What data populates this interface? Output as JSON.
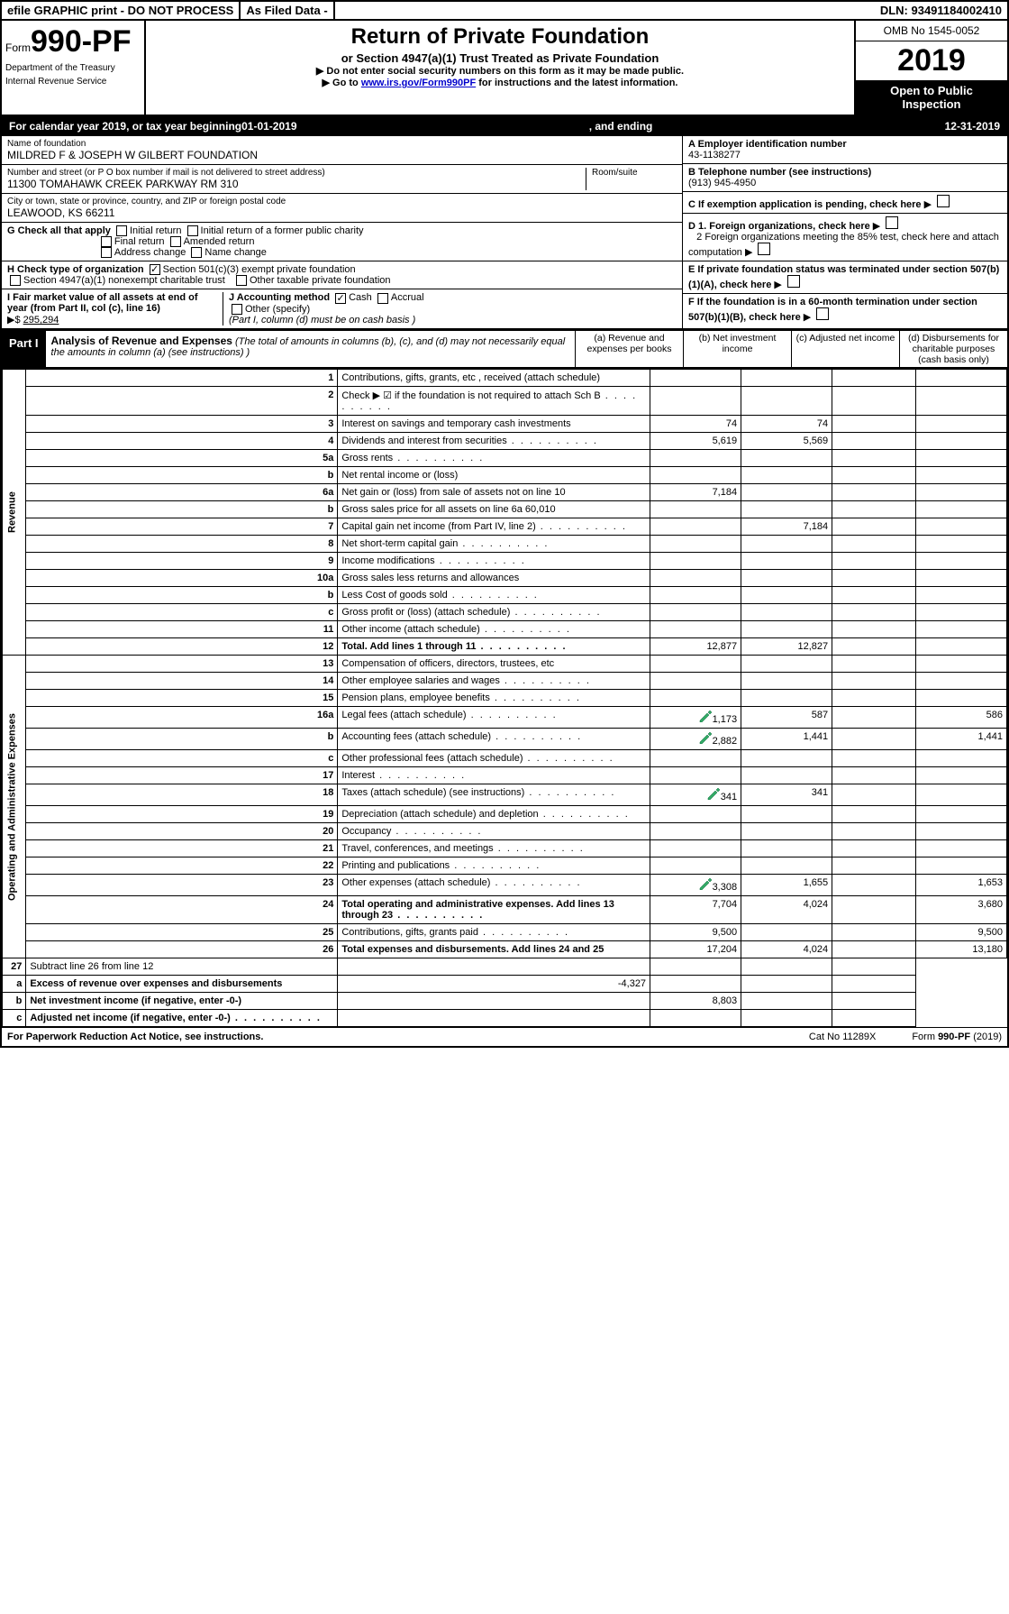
{
  "topbar": {
    "efile": "efile GRAPHIC print - DO NOT PROCESS",
    "asfiled": "As Filed Data -",
    "dln": "DLN: 93491184002410"
  },
  "header": {
    "form_prefix": "Form",
    "form_number": "990-PF",
    "dept1": "Department of the Treasury",
    "dept2": "Internal Revenue Service",
    "title": "Return of Private Foundation",
    "subtitle": "or Section 4947(a)(1) Trust Treated as Private Foundation",
    "note1": "▶ Do not enter social security numbers on this form as it may be made public.",
    "note2_pre": "▶ Go to ",
    "note2_link": "www.irs.gov/Form990PF",
    "note2_post": " for instructions and the latest information.",
    "omb": "OMB No 1545-0052",
    "year": "2019",
    "open1": "Open to Public",
    "open2": "Inspection"
  },
  "cal": {
    "pre": "For calendar year 2019, or tax year beginning ",
    "begin": "01-01-2019",
    "mid": ", and ending ",
    "end": "12-31-2019"
  },
  "ident": {
    "name_label": "Name of foundation",
    "name": "MILDRED F & JOSEPH W GILBERT FOUNDATION",
    "street_label": "Number and street (or P O  box number if mail is not delivered to street address)",
    "room_label": "Room/suite",
    "street": "11300 TOMAHAWK CREEK PARKWAY RM 310",
    "city_label": "City or town, state or province, country, and ZIP or foreign postal code",
    "city": "LEAWOOD, KS  66211",
    "ein_label": "A Employer identification number",
    "ein": "43-1138277",
    "phone_label": "B Telephone number (see instructions)",
    "phone": "(913) 945-4950",
    "c_label": "C If exemption application is pending, check here",
    "d1": "D 1. Foreign organizations, check here",
    "d2": "2 Foreign organizations meeting the 85% test, check here and attach computation",
    "e": "E  If private foundation status was terminated under section 507(b)(1)(A), check here",
    "f": "F  If the foundation is in a 60-month termination under section 507(b)(1)(B), check here"
  },
  "g": {
    "label": "G Check all that apply",
    "opts": [
      "Initial return",
      "Initial return of a former public charity",
      "Final return",
      "Amended return",
      "Address change",
      "Name change"
    ]
  },
  "h": {
    "label": "H Check type of organization",
    "opt1": "Section 501(c)(3) exempt private foundation",
    "opt2": "Section 4947(a)(1) nonexempt charitable trust",
    "opt3": "Other taxable private foundation"
  },
  "i": {
    "label": "I Fair market value of all assets at end of year (from Part II, col  (c), line 16)",
    "arrow": "▶$",
    "value": "295,294"
  },
  "j": {
    "label": "J Accounting method",
    "cash": "Cash",
    "accrual": "Accrual",
    "other": "Other (specify)",
    "note": "(Part I, column (d) must be on cash basis )"
  },
  "part1": {
    "label": "Part I",
    "title": "Analysis of Revenue and Expenses",
    "desc": "(The total of amounts in columns (b), (c), and (d) may not necessarily equal the amounts in column (a) (see instructions) )",
    "col_a": "(a) Revenue and expenses per books",
    "col_b": "(b) Net investment income",
    "col_c": "(c) Adjusted net income",
    "col_d": "(d) Disbursements for charitable purposes (cash basis only)"
  },
  "sections": {
    "revenue": "Revenue",
    "expenses": "Operating and Administrative Expenses"
  },
  "rows": [
    {
      "n": "1",
      "d": "Contributions, gifts, grants, etc , received (attach schedule)",
      "a": "",
      "b": "",
      "c": "",
      "dd": ""
    },
    {
      "n": "2",
      "d": "Check ▶ ☑ if the foundation is not required to attach Sch B",
      "a": "",
      "b": "",
      "c": "",
      "dd": "",
      "dots": true
    },
    {
      "n": "3",
      "d": "Interest on savings and temporary cash investments",
      "a": "74",
      "b": "74",
      "c": "",
      "dd": ""
    },
    {
      "n": "4",
      "d": "Dividends and interest from securities",
      "a": "5,619",
      "b": "5,569",
      "c": "",
      "dd": "",
      "dots": true
    },
    {
      "n": "5a",
      "d": "Gross rents",
      "a": "",
      "b": "",
      "c": "",
      "dd": "",
      "dots": true
    },
    {
      "n": "b",
      "d": "Net rental income or (loss)",
      "a": "",
      "b": "",
      "c": "",
      "dd": ""
    },
    {
      "n": "6a",
      "d": "Net gain or (loss) from sale of assets not on line 10",
      "a": "7,184",
      "b": "",
      "c": "",
      "dd": ""
    },
    {
      "n": "b",
      "d": "Gross sales price for all assets on line 6a             60,010",
      "a": "",
      "b": "",
      "c": "",
      "dd": ""
    },
    {
      "n": "7",
      "d": "Capital gain net income (from Part IV, line 2)",
      "a": "",
      "b": "7,184",
      "c": "",
      "dd": "",
      "dots": true
    },
    {
      "n": "8",
      "d": "Net short-term capital gain",
      "a": "",
      "b": "",
      "c": "",
      "dd": "",
      "dots": true
    },
    {
      "n": "9",
      "d": "Income modifications",
      "a": "",
      "b": "",
      "c": "",
      "dd": "",
      "dots": true
    },
    {
      "n": "10a",
      "d": "Gross sales less returns and allowances",
      "a": "",
      "b": "",
      "c": "",
      "dd": ""
    },
    {
      "n": "b",
      "d": "Less  Cost of goods sold",
      "a": "",
      "b": "",
      "c": "",
      "dd": "",
      "dots": true
    },
    {
      "n": "c",
      "d": "Gross profit or (loss) (attach schedule)",
      "a": "",
      "b": "",
      "c": "",
      "dd": "",
      "dots": true
    },
    {
      "n": "11",
      "d": "Other income (attach schedule)",
      "a": "",
      "b": "",
      "c": "",
      "dd": "",
      "dots": true
    },
    {
      "n": "12",
      "d": "Total. Add lines 1 through 11",
      "a": "12,877",
      "b": "12,827",
      "c": "",
      "dd": "",
      "bold": true,
      "dots": true
    }
  ],
  "exp_rows": [
    {
      "n": "13",
      "d": "Compensation of officers, directors, trustees, etc",
      "a": "",
      "b": "",
      "c": "",
      "dd": ""
    },
    {
      "n": "14",
      "d": "Other employee salaries and wages",
      "a": "",
      "b": "",
      "c": "",
      "dd": "",
      "dots": true
    },
    {
      "n": "15",
      "d": "Pension plans, employee benefits",
      "a": "",
      "b": "",
      "c": "",
      "dd": "",
      "dots": true
    },
    {
      "n": "16a",
      "d": "Legal fees (attach schedule)",
      "a": "1,173",
      "b": "587",
      "c": "",
      "dd": "586",
      "icon": true,
      "dots": true
    },
    {
      "n": "b",
      "d": "Accounting fees (attach schedule)",
      "a": "2,882",
      "b": "1,441",
      "c": "",
      "dd": "1,441",
      "icon": true,
      "dots": true
    },
    {
      "n": "c",
      "d": "Other professional fees (attach schedule)",
      "a": "",
      "b": "",
      "c": "",
      "dd": "",
      "dots": true
    },
    {
      "n": "17",
      "d": "Interest",
      "a": "",
      "b": "",
      "c": "",
      "dd": "",
      "dots": true
    },
    {
      "n": "18",
      "d": "Taxes (attach schedule) (see instructions)",
      "a": "341",
      "b": "341",
      "c": "",
      "dd": "",
      "icon": true,
      "dots": true
    },
    {
      "n": "19",
      "d": "Depreciation (attach schedule) and depletion",
      "a": "",
      "b": "",
      "c": "",
      "dd": "",
      "dots": true
    },
    {
      "n": "20",
      "d": "Occupancy",
      "a": "",
      "b": "",
      "c": "",
      "dd": "",
      "dots": true
    },
    {
      "n": "21",
      "d": "Travel, conferences, and meetings",
      "a": "",
      "b": "",
      "c": "",
      "dd": "",
      "dots": true
    },
    {
      "n": "22",
      "d": "Printing and publications",
      "a": "",
      "b": "",
      "c": "",
      "dd": "",
      "dots": true
    },
    {
      "n": "23",
      "d": "Other expenses (attach schedule)",
      "a": "3,308",
      "b": "1,655",
      "c": "",
      "dd": "1,653",
      "icon": true,
      "dots": true
    },
    {
      "n": "24",
      "d": "Total operating and administrative expenses. Add lines 13 through 23",
      "a": "7,704",
      "b": "4,024",
      "c": "",
      "dd": "3,680",
      "bold": true,
      "dots": true
    },
    {
      "n": "25",
      "d": "Contributions, gifts, grants paid",
      "a": "9,500",
      "b": "",
      "c": "",
      "dd": "9,500",
      "dots": true
    },
    {
      "n": "26",
      "d": "Total expenses and disbursements. Add lines 24 and 25",
      "a": "17,204",
      "b": "4,024",
      "c": "",
      "dd": "13,180",
      "bold": true
    }
  ],
  "sum_rows": [
    {
      "n": "27",
      "d": "Subtract line 26 from line 12",
      "a": "",
      "b": "",
      "c": "",
      "dd": ""
    },
    {
      "n": "a",
      "d": "Excess of revenue over expenses and disbursements",
      "a": "-4,327",
      "b": "",
      "c": "",
      "dd": "",
      "bold": true
    },
    {
      "n": "b",
      "d": "Net investment income (if negative, enter -0-)",
      "a": "",
      "b": "8,803",
      "c": "",
      "dd": "",
      "bold": true
    },
    {
      "n": "c",
      "d": "Adjusted net income (if negative, enter -0-)",
      "a": "",
      "b": "",
      "c": "",
      "dd": "",
      "bold": true,
      "dots": true
    }
  ],
  "footer": {
    "left": "For Paperwork Reduction Act Notice, see instructions.",
    "mid": "Cat No 11289X",
    "right": "Form 990-PF (2019)"
  },
  "colors": {
    "black": "#000000",
    "white": "#ffffff",
    "link": "#0000cc",
    "grey": "#e8e8e8"
  }
}
